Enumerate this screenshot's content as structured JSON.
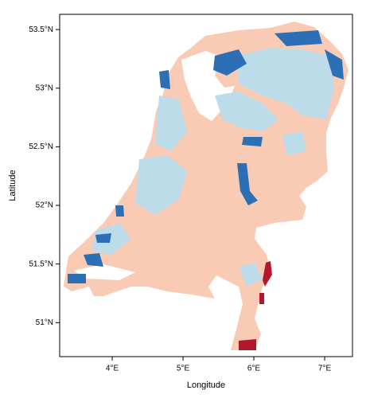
{
  "chart_data": {
    "type": "map",
    "x_label": "Longitude",
    "y_label": "Latitude",
    "xlim": [
      3.258,
      7.393
    ],
    "ylim": [
      50.71,
      53.63
    ],
    "xticks": [
      {
        "value": 4,
        "label": "4°E"
      },
      {
        "value": 5,
        "label": "5°E"
      },
      {
        "value": 6,
        "label": "6°E"
      },
      {
        "value": 7,
        "label": "7°E"
      }
    ],
    "yticks": [
      {
        "value": 51,
        "label": "51°N"
      },
      {
        "value": 51.5,
        "label": "51.5°N"
      },
      {
        "value": 52,
        "label": "52°N"
      },
      {
        "value": 52.5,
        "label": "52.5°N"
      },
      {
        "value": 53,
        "label": "53°N"
      },
      {
        "value": 53.5,
        "label": "53.5°N"
      }
    ]
  }
}
